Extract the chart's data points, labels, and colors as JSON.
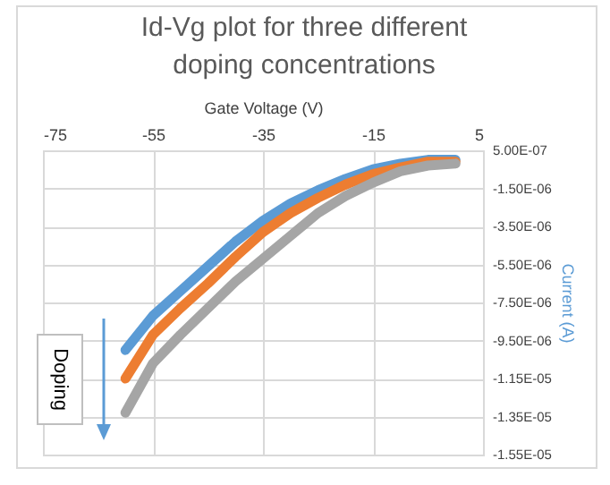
{
  "chart_data": {
    "type": "line",
    "title": "Id-Vg plot for three different doping concentrations",
    "xlabel": "Gate Voltage (V)",
    "ylabel": "Current (A)",
    "x": [
      -60,
      -55,
      -50,
      -45,
      -40,
      -35,
      -30,
      -25,
      -20,
      -15,
      -10,
      -5,
      0
    ],
    "series": [
      {
        "color": "#5b9bd5",
        "values": [
          -1e-05,
          -8.2e-06,
          -6.9e-06,
          -5.6e-06,
          -4.3e-06,
          -3.2e-06,
          -2.3e-06,
          -1.6e-06,
          -1e-06,
          -5e-07,
          -2e-07,
          0,
          0
        ]
      },
      {
        "color": "#ed7d31",
        "values": [
          -1.15e-05,
          -9.2e-06,
          -7.8e-06,
          -6.5e-06,
          -5.1e-06,
          -3.8e-06,
          -2.8e-06,
          -2e-06,
          -1.3e-06,
          -7.5e-07,
          -4e-07,
          -1e-07,
          -1e-07
        ]
      },
      {
        "color": "#a5a5a5",
        "values": [
          -1.33e-05,
          -1.07e-05,
          -9.2e-06,
          -7.8e-06,
          -6.4e-06,
          -5.2e-06,
          -4e-06,
          -2.8e-06,
          -1.9e-06,
          -1.2e-06,
          -6e-07,
          -3e-07,
          -2e-07
        ]
      }
    ],
    "xlim": [
      -75,
      5
    ],
    "xticks": [
      -75,
      -55,
      -35,
      -15,
      5
    ],
    "ylim": [
      -1.55e-05,
      5e-07
    ],
    "yticks": [
      {
        "value": 5e-07,
        "label": "5.00E-07"
      },
      {
        "value": -1.5e-06,
        "label": "-1.50E-06"
      },
      {
        "value": -3.5e-06,
        "label": "-3.50E-06"
      },
      {
        "value": -5.5e-06,
        "label": "-5.50E-06"
      },
      {
        "value": -7.5e-06,
        "label": "-7.50E-06"
      },
      {
        "value": -9.5e-06,
        "label": "-9.50E-06"
      },
      {
        "value": -1.15e-05,
        "label": "-1.15E-05"
      },
      {
        "value": -1.35e-05,
        "label": "-1.35E-05"
      },
      {
        "value": -1.55e-05,
        "label": "-1.55E-05"
      }
    ],
    "grid": true,
    "annotations": [
      "Doping"
    ]
  }
}
